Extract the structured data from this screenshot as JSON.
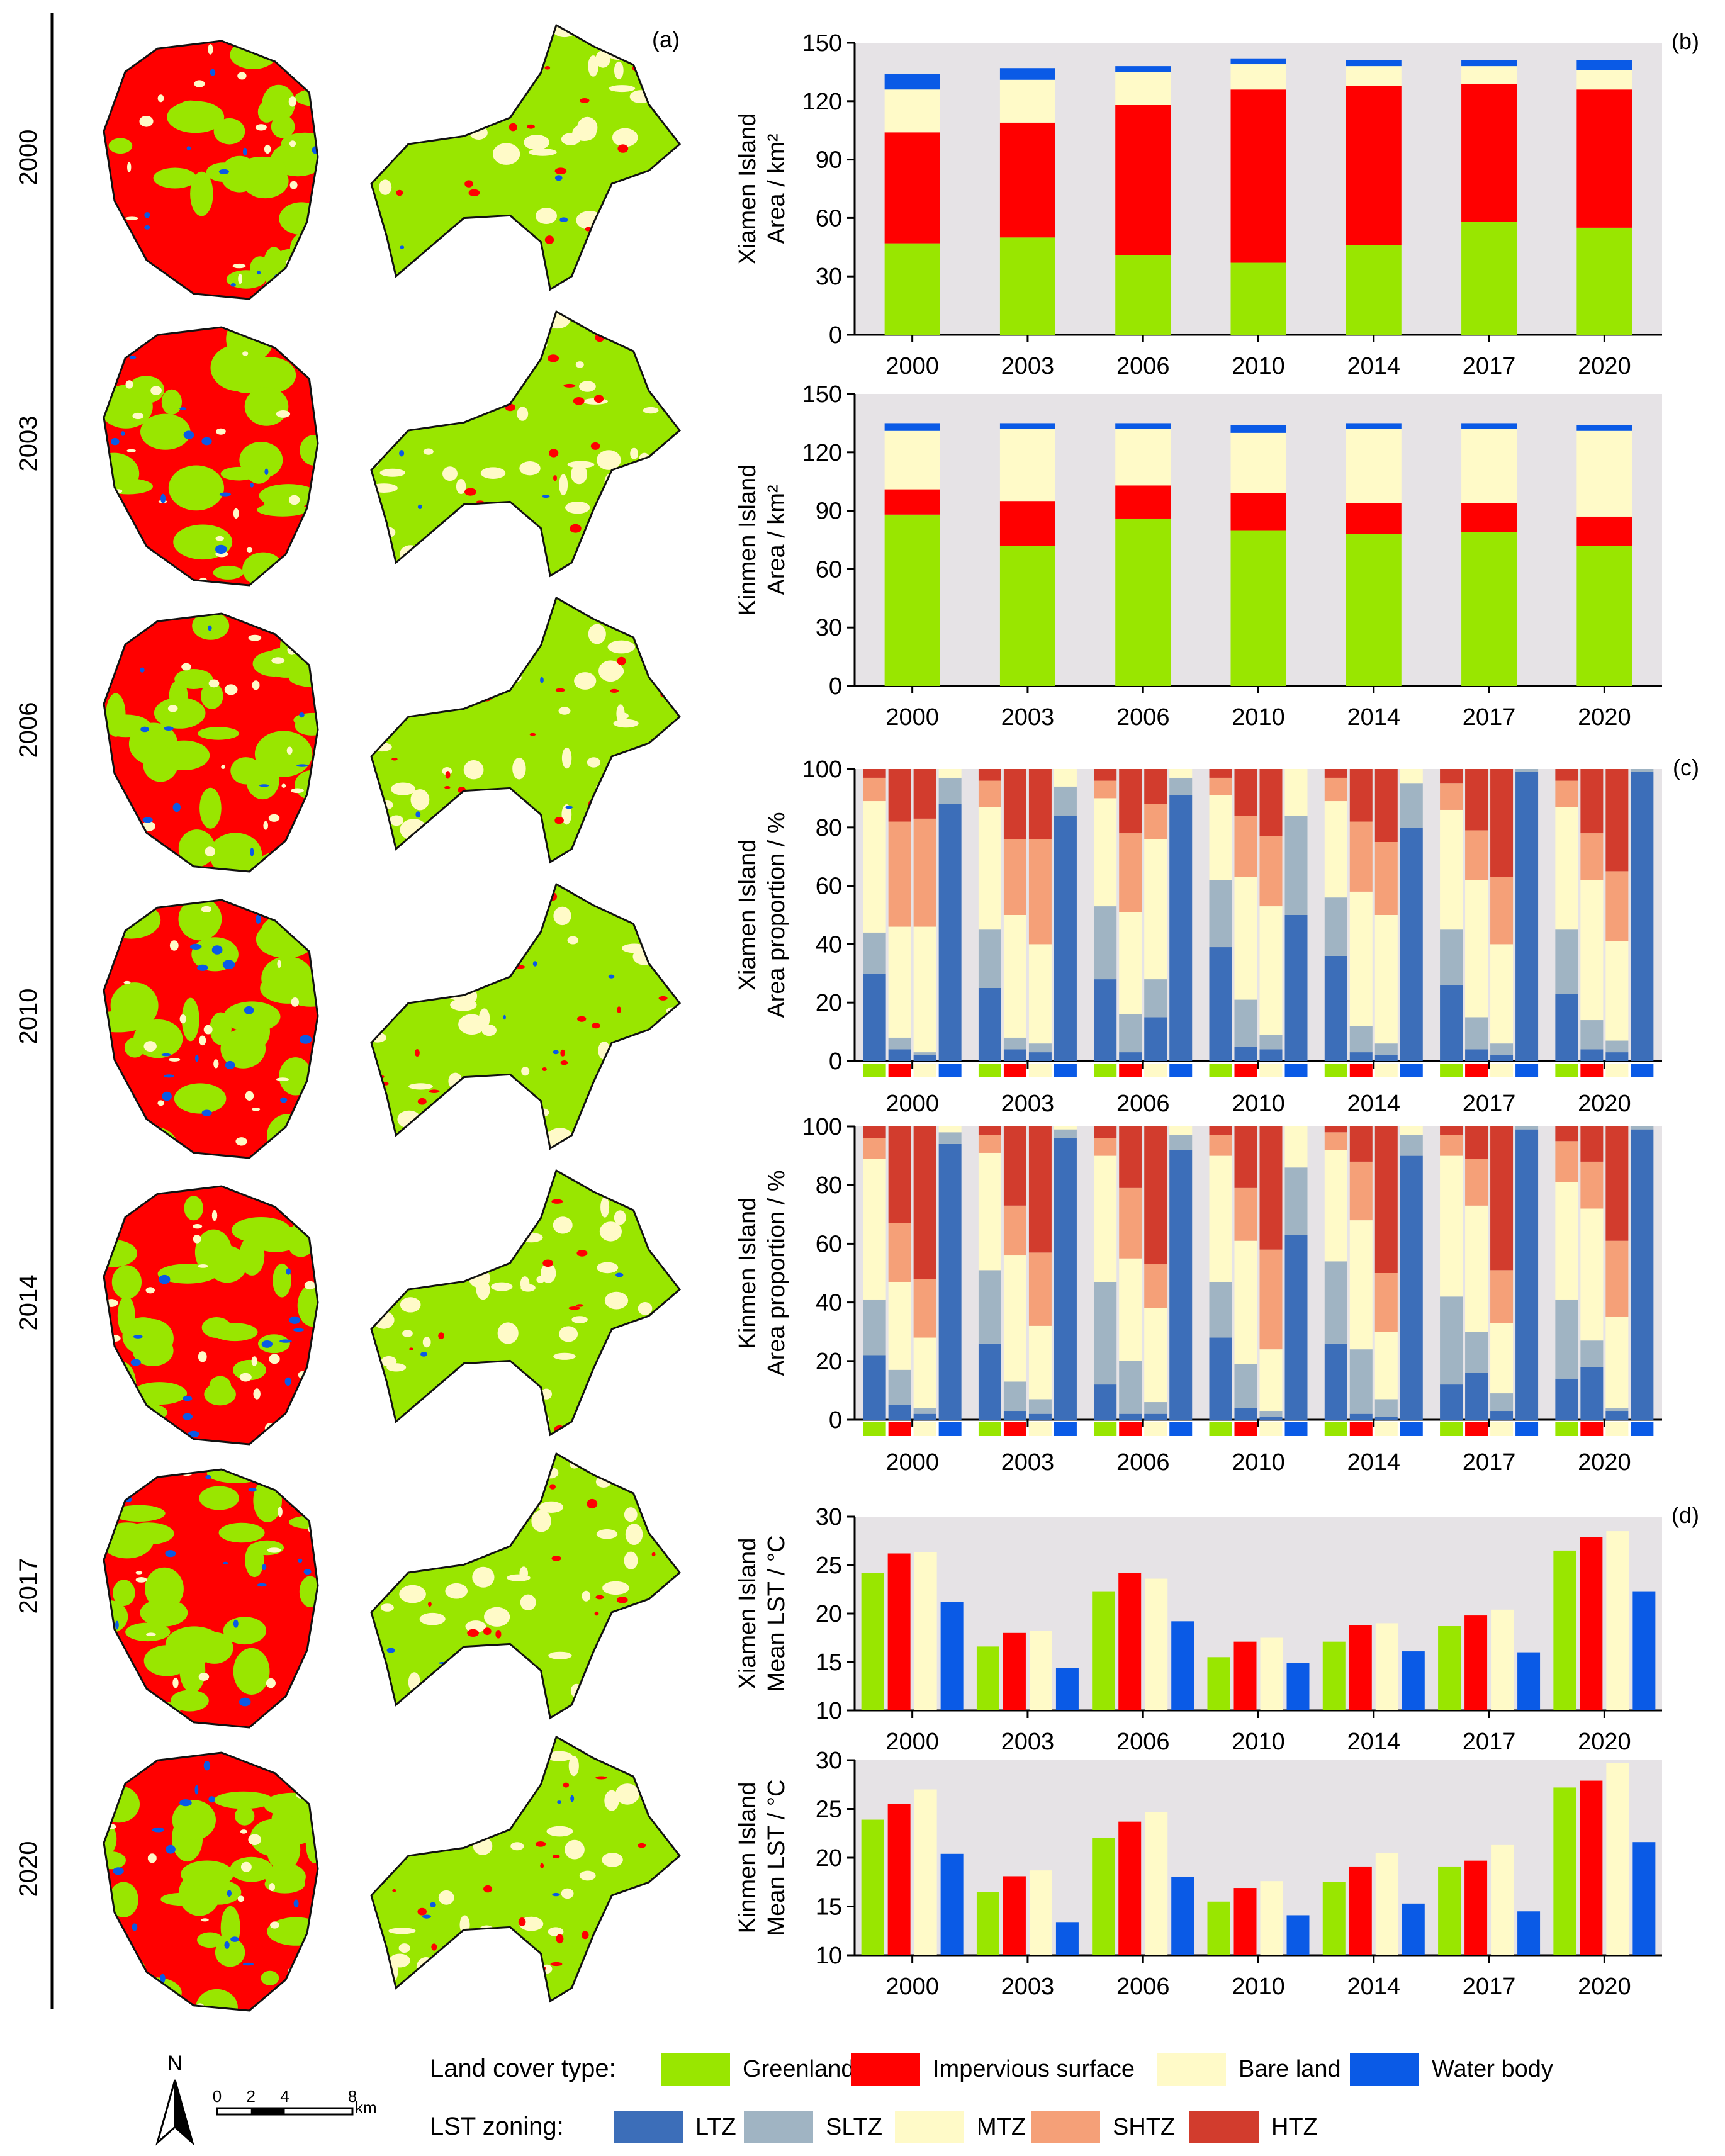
{
  "colors": {
    "greenland": "#99e600",
    "impervious": "#ff0000",
    "bare": "#fffac8",
    "water": "#0a5ae6",
    "ltz": "#3c6eb9",
    "sltz": "#a0b4c3",
    "mtz": "#fffac8",
    "shtz": "#f5a078",
    "htz": "#d23c2d",
    "panel_bg": "#e6e3e6",
    "map_outline": "#111111"
  },
  "maps": {
    "panel_label": "(a)",
    "year_labels": [
      "2000",
      "2003",
      "2006",
      "2010",
      "2014",
      "2017",
      "2020"
    ]
  },
  "scale_bar": {
    "north": "N",
    "ticks": [
      "0",
      "2",
      "4",
      "8"
    ],
    "unit": "km"
  },
  "legend": {
    "land_cover_title": "Land cover type:",
    "land_cover_items": [
      {
        "label": "Greenland",
        "color": "#99e600"
      },
      {
        "label": "Impervious surface",
        "color": "#ff0000"
      },
      {
        "label": "Bare land",
        "color": "#fffac8"
      },
      {
        "label": "Water body",
        "color": "#0a5ae6"
      }
    ],
    "lst_title": "LST zoning:",
    "lst_items": [
      {
        "label": "LTZ",
        "color": "#3c6eb9"
      },
      {
        "label": "SLTZ",
        "color": "#a0b4c3"
      },
      {
        "label": "MTZ",
        "color": "#fffac8"
      },
      {
        "label": "SHTZ",
        "color": "#f5a078"
      },
      {
        "label": "HTZ",
        "color": "#d23c2d"
      }
    ]
  },
  "chart_data": [
    {
      "id": "b1",
      "panel_label": "(b)",
      "type": "bar",
      "stacked": true,
      "ylabel_line1": "Xiamen Island",
      "ylabel_line2": "Area / km²",
      "categories": [
        "2000",
        "2003",
        "2006",
        "2010",
        "2014",
        "2017",
        "2020"
      ],
      "ylim": [
        0,
        150
      ],
      "yticks": [
        "0",
        "30",
        "60",
        "90",
        "120",
        "150"
      ],
      "series": [
        {
          "name": "Greenland",
          "values": [
            47,
            50,
            41,
            37,
            46,
            58,
            55
          ]
        },
        {
          "name": "Impervious surface",
          "values": [
            57,
            59,
            77,
            89,
            82,
            71,
            71
          ]
        },
        {
          "name": "Bare land",
          "values": [
            22,
            22,
            17,
            13,
            10,
            9,
            10
          ]
        },
        {
          "name": "Water body",
          "values": [
            8,
            6,
            3,
            3,
            3,
            3,
            5
          ]
        }
      ]
    },
    {
      "id": "b2",
      "panel_label": "",
      "type": "bar",
      "stacked": true,
      "ylabel_line1": "Kinmen Island",
      "ylabel_line2": "Area / km²",
      "categories": [
        "2000",
        "2003",
        "2006",
        "2010",
        "2014",
        "2017",
        "2020"
      ],
      "ylim": [
        0,
        150
      ],
      "yticks": [
        "0",
        "30",
        "60",
        "90",
        "120",
        "150"
      ],
      "series": [
        {
          "name": "Greenland",
          "values": [
            88,
            72,
            86,
            80,
            78,
            79,
            72
          ]
        },
        {
          "name": "Impervious surface",
          "values": [
            13,
            23,
            17,
            19,
            16,
            15,
            15
          ]
        },
        {
          "name": "Bare land",
          "values": [
            30,
            37,
            29,
            31,
            38,
            38,
            44
          ]
        },
        {
          "name": "Water body",
          "values": [
            4,
            3,
            3,
            4,
            3,
            3,
            3
          ]
        }
      ]
    },
    {
      "id": "c1",
      "panel_label": "(c)",
      "type": "bar",
      "stacked": true,
      "grouped": true,
      "ylabel_line1": "Xiamen Island",
      "ylabel_line2": "Area proportion / %",
      "categories": [
        "2000",
        "2003",
        "2006",
        "2010",
        "2014",
        "2017",
        "2020"
      ],
      "group_members": [
        "Greenland",
        "Impervious surface",
        "Bare land",
        "Water body"
      ],
      "ylim": [
        0,
        100
      ],
      "yticks": [
        "0",
        "20",
        "40",
        "60",
        "80",
        "100"
      ],
      "series_names": [
        "LTZ",
        "SLTZ",
        "MTZ",
        "SHTZ",
        "HTZ"
      ],
      "values": [
        [
          [
            30,
            14,
            45,
            8,
            3
          ],
          [
            4,
            4,
            38,
            36,
            18
          ],
          [
            2,
            1,
            43,
            37,
            17
          ],
          [
            88,
            9,
            3,
            0,
            0
          ]
        ],
        [
          [
            25,
            20,
            42,
            9,
            4
          ],
          [
            4,
            4,
            42,
            26,
            24
          ],
          [
            3,
            3,
            34,
            36,
            24
          ],
          [
            84,
            10,
            6,
            0,
            0
          ]
        ],
        [
          [
            28,
            25,
            37,
            6,
            4
          ],
          [
            3,
            13,
            35,
            27,
            22
          ],
          [
            15,
            13,
            48,
            12,
            12
          ],
          [
            91,
            6,
            3,
            0,
            0
          ]
        ],
        [
          [
            39,
            23,
            29,
            6,
            3
          ],
          [
            5,
            16,
            42,
            21,
            16
          ],
          [
            4,
            5,
            44,
            24,
            23
          ],
          [
            50,
            34,
            16,
            0,
            0
          ]
        ],
        [
          [
            36,
            20,
            33,
            8,
            3
          ],
          [
            3,
            9,
            46,
            24,
            18
          ],
          [
            2,
            4,
            44,
            25,
            25
          ],
          [
            80,
            15,
            5,
            0,
            0
          ]
        ],
        [
          [
            26,
            19,
            41,
            9,
            5
          ],
          [
            4,
            11,
            47,
            17,
            21
          ],
          [
            2,
            4,
            34,
            23,
            37
          ],
          [
            99,
            1,
            0,
            0,
            0
          ]
        ],
        [
          [
            23,
            22,
            42,
            9,
            4
          ],
          [
            4,
            10,
            48,
            16,
            22
          ],
          [
            3,
            4,
            34,
            24,
            35
          ],
          [
            99,
            1,
            0,
            0,
            0
          ]
        ]
      ]
    },
    {
      "id": "c2",
      "panel_label": "",
      "type": "bar",
      "stacked": true,
      "grouped": true,
      "ylabel_line1": "Kinmen Island",
      "ylabel_line2": "Area proportion / %",
      "categories": [
        "2000",
        "2003",
        "2006",
        "2010",
        "2014",
        "2017",
        "2020"
      ],
      "group_members": [
        "Greenland",
        "Impervious surface",
        "Bare land",
        "Water body"
      ],
      "ylim": [
        0,
        100
      ],
      "yticks": [
        "0",
        "20",
        "40",
        "60",
        "80",
        "100"
      ],
      "series_names": [
        "LTZ",
        "SLTZ",
        "MTZ",
        "SHTZ",
        "HTZ"
      ],
      "values": [
        [
          [
            22,
            19,
            48,
            7,
            4
          ],
          [
            5,
            12,
            30,
            20,
            33
          ],
          [
            2,
            2,
            24,
            20,
            52
          ],
          [
            94,
            4,
            2,
            0,
            0
          ]
        ],
        [
          [
            26,
            25,
            40,
            6,
            3
          ],
          [
            3,
            10,
            43,
            17,
            27
          ],
          [
            2,
            5,
            25,
            25,
            43
          ],
          [
            96,
            3,
            1,
            0,
            0
          ]
        ],
        [
          [
            12,
            35,
            43,
            6,
            4
          ],
          [
            2,
            18,
            35,
            24,
            21
          ],
          [
            2,
            4,
            32,
            15,
            47
          ],
          [
            92,
            5,
            3,
            0,
            0
          ]
        ],
        [
          [
            28,
            19,
            43,
            7,
            3
          ],
          [
            4,
            15,
            42,
            18,
            21
          ],
          [
            1,
            2,
            21,
            34,
            42
          ],
          [
            63,
            23,
            14,
            0,
            0
          ]
        ],
        [
          [
            26,
            28,
            38,
            6,
            2
          ],
          [
            2,
            22,
            44,
            20,
            12
          ],
          [
            1,
            6,
            23,
            20,
            50
          ],
          [
            90,
            7,
            3,
            0,
            0
          ]
        ],
        [
          [
            12,
            30,
            48,
            7,
            3
          ],
          [
            16,
            14,
            43,
            16,
            11
          ],
          [
            3,
            6,
            24,
            18,
            49
          ],
          [
            99,
            1,
            0,
            0,
            0
          ]
        ],
        [
          [
            14,
            27,
            40,
            14,
            5
          ],
          [
            18,
            9,
            45,
            16,
            12
          ],
          [
            3,
            1,
            31,
            26,
            39
          ],
          [
            99,
            1,
            0,
            0,
            0
          ]
        ]
      ]
    },
    {
      "id": "d1",
      "panel_label": "(d)",
      "type": "bar",
      "grouped": true,
      "ylabel_line1": "Xiamen Island",
      "ylabel_line2": "Mean LST / °C",
      "categories": [
        "2000",
        "2003",
        "2006",
        "2010",
        "2014",
        "2017",
        "2020"
      ],
      "ylim": [
        10,
        30
      ],
      "yticks": [
        "10",
        "15",
        "20",
        "25",
        "30"
      ],
      "series": [
        {
          "name": "Greenland",
          "values": [
            24.2,
            16.6,
            22.3,
            15.5,
            17.1,
            18.7,
            26.5
          ]
        },
        {
          "name": "Impervious surface",
          "values": [
            26.2,
            18.0,
            24.2,
            17.1,
            18.8,
            19.8,
            27.9
          ]
        },
        {
          "name": "Bare land",
          "values": [
            26.3,
            18.2,
            23.6,
            17.5,
            19.0,
            20.4,
            28.5
          ]
        },
        {
          "name": "Water body",
          "values": [
            21.2,
            14.4,
            19.2,
            14.9,
            16.1,
            16.0,
            22.3
          ]
        }
      ]
    },
    {
      "id": "d2",
      "panel_label": "",
      "type": "bar",
      "grouped": true,
      "ylabel_line1": "Kinmen Island",
      "ylabel_line2": "Mean LST / °C",
      "categories": [
        "2000",
        "2003",
        "2006",
        "2010",
        "2014",
        "2017",
        "2020"
      ],
      "ylim": [
        10,
        30
      ],
      "yticks": [
        "10",
        "15",
        "20",
        "25",
        "30"
      ],
      "series": [
        {
          "name": "Greenland",
          "values": [
            23.9,
            16.5,
            22.0,
            15.5,
            17.5,
            19.1,
            27.2
          ]
        },
        {
          "name": "Impervious surface",
          "values": [
            25.5,
            18.1,
            23.7,
            16.9,
            19.1,
            19.7,
            27.9
          ]
        },
        {
          "name": "Bare land",
          "values": [
            27.0,
            18.7,
            24.7,
            17.6,
            20.5,
            21.3,
            29.7
          ]
        },
        {
          "name": "Water body",
          "values": [
            20.4,
            13.4,
            18.0,
            14.1,
            15.3,
            14.5,
            21.6
          ]
        }
      ]
    }
  ]
}
